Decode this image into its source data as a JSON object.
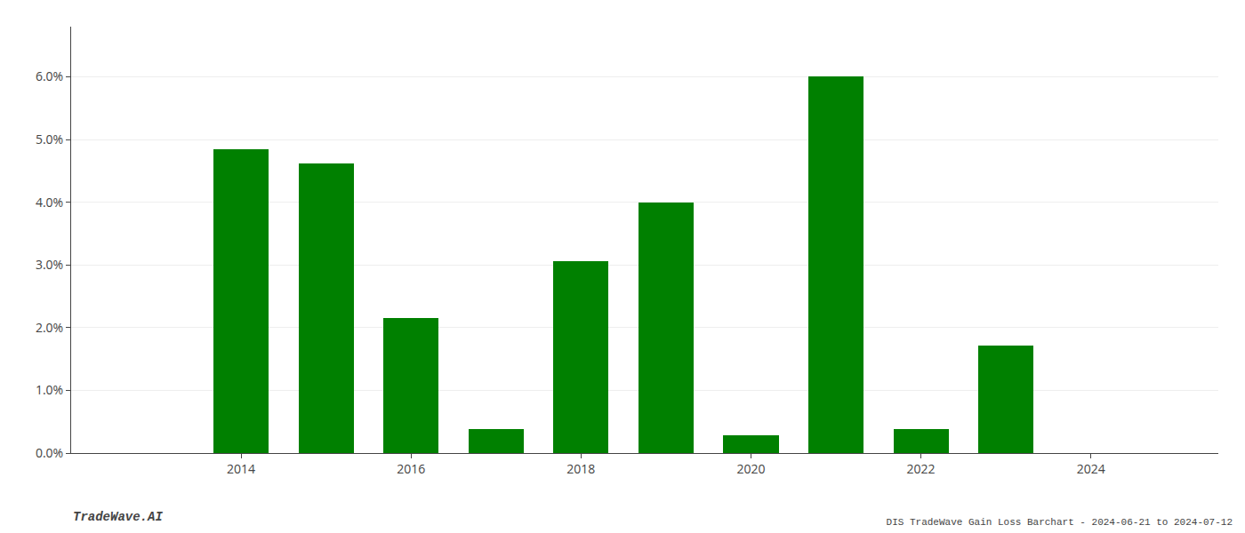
{
  "chart_data": {
    "type": "bar",
    "title": "DIS TradeWave Gain Loss Barchart - 2024-06-21 to 2024-07-12",
    "annotations": [
      "TradeWave.AI"
    ],
    "x": [
      2013,
      2014,
      2015,
      2016,
      2017,
      2018,
      2019,
      2020,
      2021,
      2022,
      2023,
      2024
    ],
    "values": [
      0.0,
      0.0484,
      0.0462,
      0.0215,
      0.0038,
      0.0306,
      0.0399,
      0.0028,
      0.0601,
      0.0038,
      0.0172,
      0.0
    ],
    "color": "#008000",
    "xlim": [
      2012.0,
      2025.5
    ],
    "xticks": [
      2014,
      2016,
      2018,
      2020,
      2022,
      2024
    ],
    "ylim": [
      0.0,
      0.068
    ],
    "yticks": [
      {
        "value": 0.0,
        "label": "0.0%"
      },
      {
        "value": 0.01,
        "label": "1.0%"
      },
      {
        "value": 0.02,
        "label": "2.0%"
      },
      {
        "value": 0.03,
        "label": "3.0%"
      },
      {
        "value": 0.04,
        "label": "4.0%"
      },
      {
        "value": 0.05,
        "label": "5.0%"
      },
      {
        "value": 0.06,
        "label": "6.0%"
      }
    ],
    "grid": true
  }
}
